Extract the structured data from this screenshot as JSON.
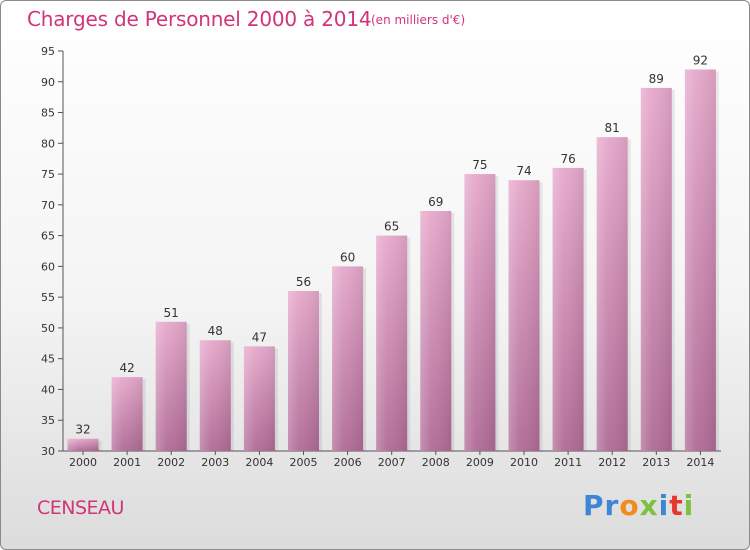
{
  "title": "Charges de Personnel 2000 à 2014",
  "subtitle": "(en milliers d'€)",
  "commune": "CENSEAU",
  "logo": {
    "letters": [
      {
        "ch": "P",
        "color": "#3d86d6"
      },
      {
        "ch": "r",
        "color": "#3d86d6"
      },
      {
        "ch": "o",
        "color": "#f28a1c"
      },
      {
        "ch": "x",
        "color": "#7dc142"
      },
      {
        "ch": "i",
        "color": "#3d86d6"
      },
      {
        "ch": "t",
        "color": "#e8352e"
      },
      {
        "ch": "i",
        "color": "#7dc142"
      }
    ]
  },
  "colors": {
    "accent": "#d0357a",
    "bar_top": "#e6a8cb",
    "bar_bottom": "#b06b96"
  },
  "chart_data": {
    "type": "bar",
    "categories": [
      "2000",
      "2001",
      "2002",
      "2003",
      "2004",
      "2005",
      "2006",
      "2007",
      "2008",
      "2009",
      "2010",
      "2011",
      "2012",
      "2013",
      "2014"
    ],
    "values": [
      32,
      42,
      51,
      48,
      47,
      56,
      60,
      65,
      69,
      75,
      74,
      76,
      81,
      89,
      92
    ],
    "title": "Charges de Personnel 2000 à 2014",
    "ylim": [
      30,
      95
    ],
    "yticks": [
      30,
      35,
      40,
      45,
      50,
      55,
      60,
      65,
      70,
      75,
      80,
      85,
      90,
      95
    ],
    "grid": false,
    "legend": "none"
  }
}
